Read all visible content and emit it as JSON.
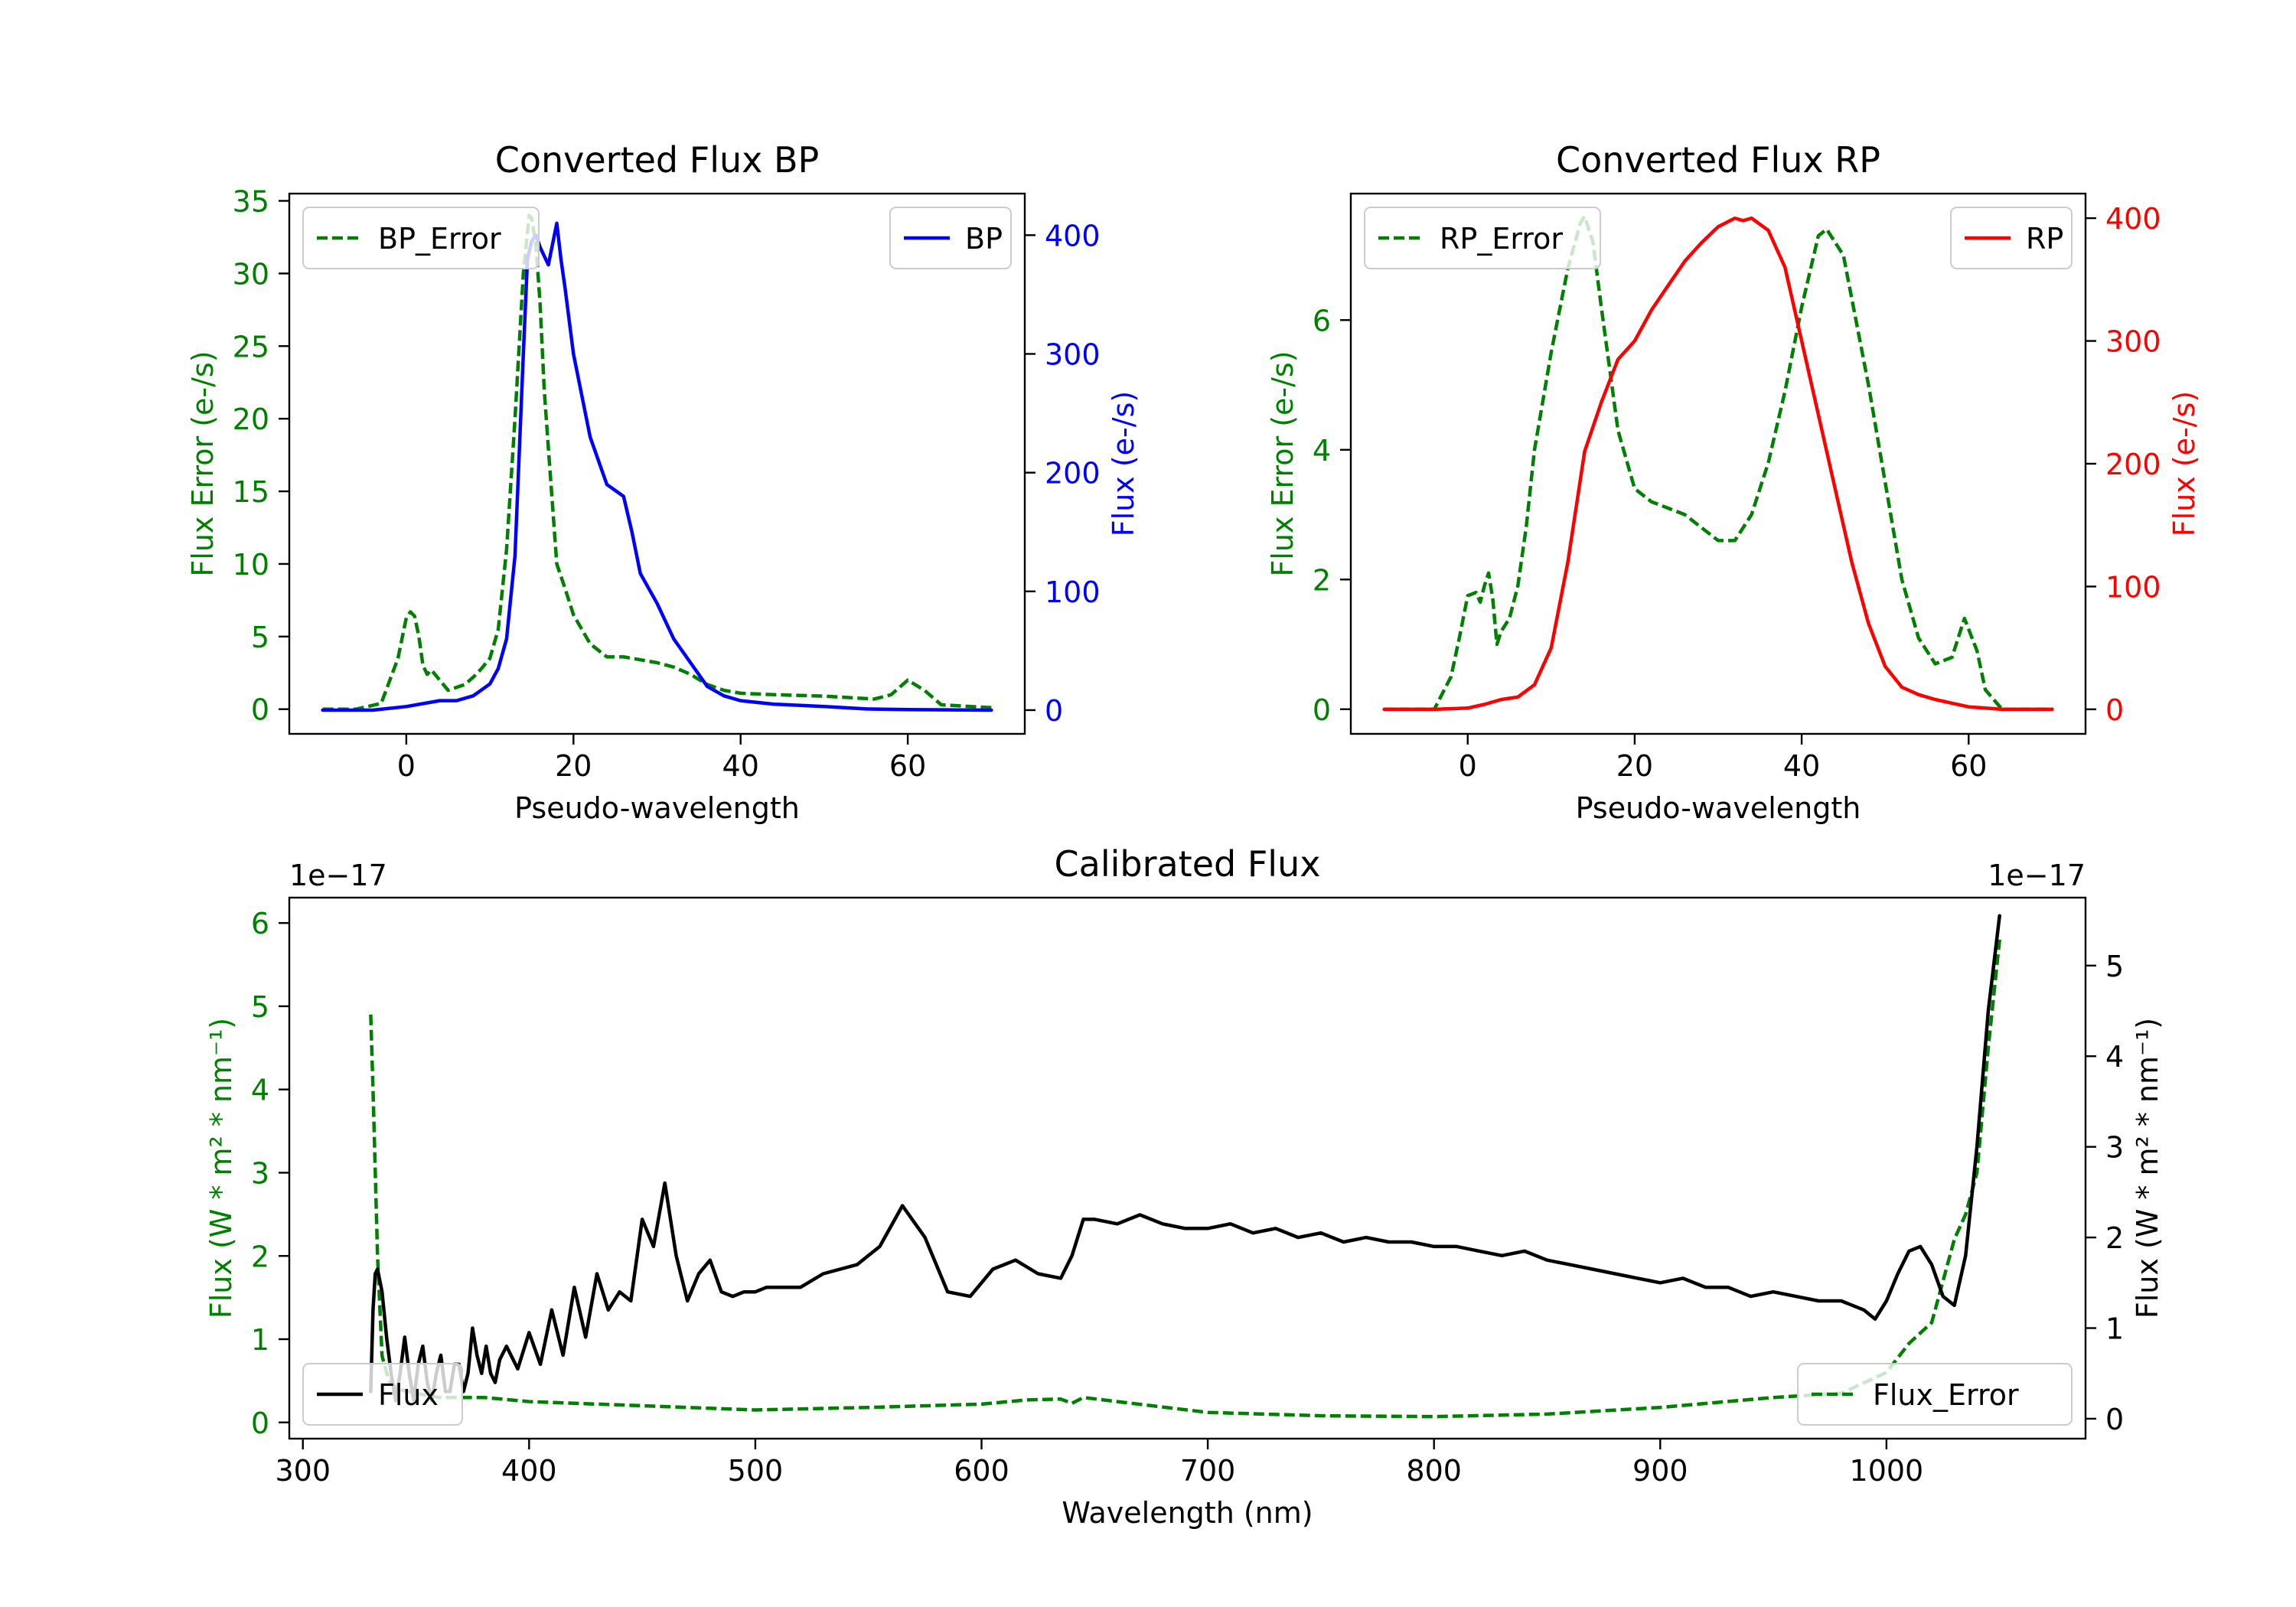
{
  "chart_data": [
    {
      "type": "line",
      "title": "Converted Flux BP",
      "xlabel": "Pseudo-wavelength",
      "xlim": [
        -14,
        74
      ],
      "xticks": [
        0,
        20,
        40,
        60
      ],
      "left_axis": {
        "label": "Flux Error (e-/s)",
        "color": "#008000",
        "ylim": [
          -1.7,
          35.5
        ],
        "ticks": [
          0,
          5,
          10,
          15,
          20,
          25,
          30,
          35
        ]
      },
      "right_axis": {
        "label": "Flux (e-/s)",
        "color": "#0000ff",
        "ylim": [
          -20,
          435
        ],
        "ticks": [
          0,
          100,
          200,
          300,
          400
        ]
      },
      "series": [
        {
          "name": "BP_Error",
          "axis": "left",
          "color": "#008000",
          "dash": true,
          "x": [
            -10,
            -6,
            -3,
            -1,
            0,
            0.5,
            1,
            1.5,
            2,
            2.5,
            3,
            4,
            5,
            6,
            7,
            8,
            9,
            10,
            11,
            12,
            13,
            14,
            14.7,
            15,
            15.5,
            16,
            16.5,
            17,
            18,
            19,
            20,
            22,
            24,
            26,
            28,
            30,
            32,
            34,
            36,
            38,
            40,
            44,
            50,
            56,
            58,
            60,
            62,
            64,
            70
          ],
          "values": [
            0,
            0,
            0.4,
            3.5,
            6.3,
            6.7,
            6.4,
            5.0,
            3.0,
            2.4,
            2.7,
            2.0,
            1.3,
            1.5,
            1.7,
            2.2,
            2.8,
            3.5,
            5.5,
            11,
            20,
            30,
            34,
            33.8,
            32,
            28,
            22,
            18,
            10,
            8.3,
            6.5,
            4.5,
            3.6,
            3.6,
            3.4,
            3.2,
            2.9,
            2.4,
            1.7,
            1.3,
            1.1,
            1.0,
            0.9,
            0.7,
            1.0,
            2.0,
            1.3,
            0.3,
            0.1
          ]
        },
        {
          "name": "BP",
          "axis": "right",
          "color": "#0000ff",
          "dash": false,
          "x": [
            -10,
            -4,
            0,
            4,
            6,
            8,
            10,
            11,
            12,
            13,
            14,
            14.5,
            15,
            15.5,
            16,
            17,
            18,
            18.5,
            19,
            20,
            22,
            24,
            25,
            26,
            27,
            28,
            30,
            32,
            34,
            36,
            38,
            40,
            44,
            50,
            55,
            60,
            70
          ],
          "values": [
            0,
            0,
            3,
            8,
            8,
            12,
            22,
            35,
            60,
            130,
            300,
            380,
            395,
            400,
            390,
            375,
            410,
            380,
            355,
            300,
            230,
            190,
            185,
            180,
            150,
            115,
            90,
            60,
            40,
            20,
            12,
            8,
            5,
            3,
            1,
            0.5,
            0
          ]
        }
      ],
      "legends": [
        {
          "entries": [
            "BP_Error"
          ],
          "loc": "upper left"
        },
        {
          "entries": [
            "BP"
          ],
          "loc": "upper right"
        }
      ]
    },
    {
      "type": "line",
      "title": "Converted Flux RP",
      "xlabel": "Pseudo-wavelength",
      "xlim": [
        -14,
        74
      ],
      "xticks": [
        0,
        20,
        40,
        60
      ],
      "left_axis": {
        "label": "Flux Error (e-/s)",
        "color": "#008000",
        "ylim": [
          -0.38,
          7.95
        ],
        "ticks": [
          0,
          2,
          4,
          6
        ]
      },
      "right_axis": {
        "label": "Flux (e-/s)",
        "color": "#ff0000",
        "ylim": [
          -20,
          420
        ],
        "ticks": [
          0,
          100,
          200,
          300,
          400
        ]
      },
      "series": [
        {
          "name": "RP_Error",
          "axis": "left",
          "color": "#008000",
          "dash": true,
          "x": [
            -10,
            -4,
            -2,
            -1,
            0,
            1,
            1.5,
            2,
            2.5,
            3,
            3.5,
            4,
            5,
            6,
            7,
            8,
            10,
            12,
            13.5,
            14,
            15,
            16,
            18,
            20,
            22,
            26,
            30,
            32,
            34,
            36,
            38,
            40,
            42,
            43,
            45,
            48,
            52,
            54,
            56,
            58,
            59.5,
            61,
            62,
            64,
            70
          ],
          "values": [
            0,
            0,
            0.5,
            1.1,
            1.75,
            1.8,
            1.65,
            1.9,
            2.1,
            1.7,
            1.0,
            1.2,
            1.4,
            1.9,
            2.8,
            4.0,
            5.5,
            6.8,
            7.5,
            7.6,
            7.2,
            6.2,
            4.3,
            3.4,
            3.2,
            3.0,
            2.6,
            2.6,
            3.0,
            3.8,
            4.9,
            6.2,
            7.3,
            7.4,
            7.0,
            5.0,
            2.0,
            1.1,
            0.7,
            0.8,
            1.4,
            0.9,
            0.3,
            0,
            0
          ]
        },
        {
          "name": "RP",
          "axis": "right",
          "color": "#ff0000",
          "dash": false,
          "x": [
            -10,
            -4,
            0,
            2,
            4,
            6,
            8,
            10,
            12,
            14,
            16,
            18,
            20,
            22,
            24,
            26,
            28,
            30,
            32,
            33,
            34,
            36,
            38,
            40,
            42,
            44,
            46,
            48,
            50,
            52,
            54,
            56,
            58,
            60,
            62,
            64,
            70
          ],
          "values": [
            0,
            0,
            1,
            4,
            8,
            10,
            20,
            50,
            120,
            210,
            250,
            285,
            300,
            325,
            345,
            365,
            380,
            393,
            400,
            398,
            400,
            390,
            360,
            300,
            240,
            180,
            120,
            70,
            35,
            18,
            12,
            8,
            5,
            2,
            1,
            0,
            0
          ]
        }
      ],
      "legends": [
        {
          "entries": [
            "RP_Error"
          ],
          "loc": "upper left"
        },
        {
          "entries": [
            "RP"
          ],
          "loc": "upper right"
        }
      ]
    },
    {
      "type": "line",
      "title": "Calibrated Flux",
      "xlabel": "Wavelength (nm)",
      "xlim": [
        294,
        1088
      ],
      "xticks": [
        300,
        400,
        500,
        600,
        700,
        800,
        900,
        1000
      ],
      "left_axis": {
        "label": "Flux (W * m² * nm⁻¹)",
        "color": "#008000",
        "offset": "1e−17",
        "ylim": [
          -0.195,
          6.305
        ],
        "ticks": [
          0,
          1,
          2,
          3,
          4,
          5,
          6
        ]
      },
      "right_axis": {
        "label": "Flux (W * m² * nm⁻¹)",
        "color": "#000000",
        "offset": "1e−17",
        "ylim": [
          -0.22,
          5.75
        ],
        "ticks": [
          0,
          1,
          2,
          3,
          4,
          5
        ]
      },
      "series": [
        {
          "name": "Flux_Error",
          "axis": "left",
          "color": "#008000",
          "dash": true,
          "x": [
            330,
            331,
            333,
            335,
            338,
            342,
            350,
            360,
            380,
            400,
            450,
            500,
            550,
            600,
            620,
            635,
            640,
            645,
            660,
            700,
            750,
            800,
            850,
            900,
            950,
            980,
            1000,
            1010,
            1020,
            1025,
            1030,
            1035,
            1040,
            1045,
            1050
          ],
          "values": [
            4.9,
            4.0,
            2.0,
            0.8,
            0.5,
            0.4,
            0.35,
            0.3,
            0.3,
            0.25,
            0.2,
            0.15,
            0.18,
            0.22,
            0.27,
            0.28,
            0.23,
            0.3,
            0.25,
            0.12,
            0.08,
            0.07,
            0.1,
            0.18,
            0.3,
            0.35,
            0.6,
            0.95,
            1.2,
            1.7,
            2.2,
            2.5,
            3.0,
            4.5,
            5.8
          ]
        },
        {
          "name": "Flux",
          "axis": "right",
          "color": "#000000",
          "dash": false,
          "x": [
            330,
            331,
            332,
            333,
            335,
            337,
            339,
            341,
            343,
            345,
            347,
            349,
            351,
            353,
            355,
            357,
            359,
            361,
            363,
            365,
            367,
            369,
            371,
            373,
            375,
            377,
            379,
            381,
            383,
            385,
            387,
            390,
            395,
            400,
            405,
            410,
            415,
            420,
            425,
            430,
            435,
            440,
            445,
            450,
            455,
            460,
            465,
            470,
            475,
            480,
            485,
            490,
            495,
            500,
            505,
            510,
            520,
            530,
            545,
            555,
            565,
            575,
            585,
            595,
            605,
            615,
            625,
            635,
            640,
            645,
            650,
            660,
            670,
            680,
            690,
            700,
            710,
            720,
            730,
            740,
            750,
            760,
            770,
            780,
            790,
            800,
            810,
            820,
            830,
            840,
            850,
            860,
            870,
            880,
            890,
            900,
            910,
            920,
            930,
            940,
            950,
            960,
            970,
            980,
            990,
            995,
            1000,
            1005,
            1010,
            1015,
            1020,
            1025,
            1030,
            1035,
            1040,
            1045,
            1050
          ],
          "values": [
            0.3,
            1.2,
            1.6,
            1.65,
            1.4,
            0.9,
            0.5,
            0.2,
            0.5,
            0.9,
            0.5,
            0.2,
            0.6,
            0.8,
            0.4,
            0.2,
            0.5,
            0.7,
            0.3,
            0.3,
            0.6,
            0.6,
            0.3,
            0.5,
            1.0,
            0.7,
            0.5,
            0.8,
            0.5,
            0.4,
            0.65,
            0.8,
            0.55,
            0.95,
            0.6,
            1.2,
            0.7,
            1.45,
            0.9,
            1.6,
            1.2,
            1.4,
            1.3,
            2.2,
            1.9,
            2.6,
            1.8,
            1.3,
            1.6,
            1.75,
            1.4,
            1.35,
            1.4,
            1.4,
            1.45,
            1.45,
            1.45,
            1.6,
            1.7,
            1.9,
            2.35,
            2.0,
            1.4,
            1.35,
            1.65,
            1.75,
            1.6,
            1.55,
            1.8,
            2.2,
            2.2,
            2.15,
            2.25,
            2.15,
            2.1,
            2.1,
            2.15,
            2.05,
            2.1,
            2.0,
            2.05,
            1.95,
            2.0,
            1.95,
            1.95,
            1.9,
            1.9,
            1.85,
            1.8,
            1.85,
            1.75,
            1.7,
            1.65,
            1.6,
            1.55,
            1.5,
            1.55,
            1.45,
            1.45,
            1.35,
            1.4,
            1.35,
            1.3,
            1.3,
            1.2,
            1.1,
            1.3,
            1.6,
            1.85,
            1.9,
            1.7,
            1.35,
            1.25,
            1.8,
            3.0,
            4.5,
            5.55
          ]
        }
      ],
      "legends": [
        {
          "entries": [
            "Flux"
          ],
          "loc": "lower left"
        },
        {
          "entries": [
            "Flux_Error"
          ],
          "loc": "lower right"
        }
      ]
    }
  ]
}
